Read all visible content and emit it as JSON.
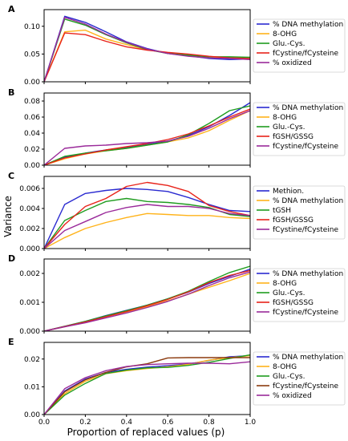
{
  "figure": {
    "ylabel": "Variance",
    "xlabel": "Proportion of replaced values (p)"
  },
  "colors": {
    "blue": "#2a2ad0",
    "orange": "#ffb31a",
    "green": "#1f9c1f",
    "red": "#e8231a",
    "purple": "#9a2a9a",
    "brown": "#8b3a0e"
  },
  "chart_data": [
    {
      "type": "line",
      "panel": "A",
      "xlim": [
        0,
        1
      ],
      "ylim": [
        0,
        0.13
      ],
      "xticks": [
        "0.0",
        "0.2",
        "0.4",
        "0.6",
        "0.8",
        "1.0"
      ],
      "yticks": [
        {
          "v": 0,
          "label": "0.00"
        },
        {
          "v": 0.05,
          "label": "0.05"
        },
        {
          "v": 0.1,
          "label": "0.10"
        }
      ],
      "x": [
        0,
        0.1,
        0.2,
        0.3,
        0.4,
        0.5,
        0.6,
        0.7,
        0.8,
        0.9,
        1.0
      ],
      "series": [
        {
          "name": "% DNA methylation",
          "color": "#2a2ad0",
          "values": [
            0,
            0.118,
            0.107,
            0.09,
            0.072,
            0.06,
            0.051,
            0.047,
            0.042,
            0.04,
            0.041
          ]
        },
        {
          "name": "8-OHG",
          "color": "#ffb31a",
          "values": [
            0,
            0.09,
            0.093,
            0.077,
            0.067,
            0.058,
            0.052,
            0.048,
            0.045,
            0.043,
            0.044
          ]
        },
        {
          "name": "Glu.-Cys.",
          "color": "#1f9c1f",
          "values": [
            0,
            0.113,
            0.102,
            0.085,
            0.07,
            0.058,
            0.051,
            0.048,
            0.045,
            0.045,
            0.044
          ]
        },
        {
          "name": "fCystine/fCysteine",
          "color": "#e8231a",
          "values": [
            0,
            0.088,
            0.085,
            0.073,
            0.063,
            0.057,
            0.053,
            0.05,
            0.046,
            0.043,
            0.042
          ]
        },
        {
          "name": "% oxidized",
          "color": "#9a2a9a",
          "values": [
            0,
            0.116,
            0.104,
            0.086,
            0.071,
            0.059,
            0.051,
            0.046,
            0.043,
            0.042,
            0.04
          ]
        }
      ]
    },
    {
      "type": "line",
      "panel": "B",
      "xlim": [
        0,
        1
      ],
      "ylim": [
        0,
        0.09
      ],
      "xticks": [
        "0.0",
        "0.2",
        "0.4",
        "0.6",
        "0.8",
        "1.0"
      ],
      "yticks": [
        {
          "v": 0,
          "label": "0.00"
        },
        {
          "v": 0.02,
          "label": "0.02"
        },
        {
          "v": 0.04,
          "label": "0.04"
        },
        {
          "v": 0.06,
          "label": "0.06"
        },
        {
          "v": 0.08,
          "label": "0.08"
        }
      ],
      "x": [
        0,
        0.1,
        0.2,
        0.3,
        0.4,
        0.5,
        0.6,
        0.7,
        0.8,
        0.9,
        1.0
      ],
      "series": [
        {
          "name": "% DNA methylation",
          "color": "#2a2ad0",
          "values": [
            0,
            0.01,
            0.015,
            0.019,
            0.022,
            0.026,
            0.03,
            0.037,
            0.048,
            0.062,
            0.078
          ]
        },
        {
          "name": "8-OHG",
          "color": "#ffb31a",
          "values": [
            0,
            0.008,
            0.014,
            0.018,
            0.021,
            0.025,
            0.029,
            0.034,
            0.043,
            0.056,
            0.068
          ]
        },
        {
          "name": "Glu.-Cys.",
          "color": "#1f9c1f",
          "values": [
            0,
            0.011,
            0.015,
            0.018,
            0.021,
            0.025,
            0.029,
            0.038,
            0.052,
            0.068,
            0.074
          ]
        },
        {
          "name": "fGSH/GSSG",
          "color": "#e8231a",
          "values": [
            0,
            0.009,
            0.014,
            0.019,
            0.023,
            0.027,
            0.032,
            0.039,
            0.049,
            0.06,
            0.07
          ]
        },
        {
          "name": "fCystine/fCysteine",
          "color": "#9a2a9a",
          "values": [
            0,
            0.021,
            0.024,
            0.025,
            0.027,
            0.028,
            0.03,
            0.036,
            0.046,
            0.058,
            0.068
          ]
        }
      ]
    },
    {
      "type": "line",
      "panel": "C",
      "xlim": [
        0,
        1
      ],
      "ylim": [
        0,
        0.0072
      ],
      "xticks": [
        "0.0",
        "0.2",
        "0.4",
        "0.6",
        "0.8",
        "1.0"
      ],
      "yticks": [
        {
          "v": 0,
          "label": "0.000"
        },
        {
          "v": 0.002,
          "label": "0.002"
        },
        {
          "v": 0.004,
          "label": "0.004"
        },
        {
          "v": 0.006,
          "label": "0.006"
        }
      ],
      "x": [
        0,
        0.1,
        0.2,
        0.3,
        0.4,
        0.5,
        0.6,
        0.7,
        0.8,
        0.9,
        1.0
      ],
      "series": [
        {
          "name": "Methion.",
          "color": "#2a2ad0",
          "values": [
            0,
            0.0044,
            0.0055,
            0.0058,
            0.006,
            0.0059,
            0.0057,
            0.0051,
            0.0044,
            0.0038,
            0.0037
          ]
        },
        {
          "name": "% DNA methylation",
          "color": "#ffb31a",
          "values": [
            0,
            0.0011,
            0.002,
            0.0026,
            0.0031,
            0.0035,
            0.0034,
            0.0033,
            0.0033,
            0.0031,
            0.003
          ]
        },
        {
          "name": "tGSH",
          "color": "#1f9c1f",
          "values": [
            0,
            0.0028,
            0.0038,
            0.0047,
            0.005,
            0.0047,
            0.0046,
            0.0044,
            0.0041,
            0.0034,
            0.0032
          ]
        },
        {
          "name": "fGSH/GSSG",
          "color": "#e8231a",
          "values": [
            0,
            0.0024,
            0.0042,
            0.005,
            0.0062,
            0.0066,
            0.0063,
            0.0057,
            0.0043,
            0.0037,
            0.0033
          ]
        },
        {
          "name": "fCystine/fCysteine",
          "color": "#9a2a9a",
          "values": [
            0,
            0.0018,
            0.0027,
            0.0036,
            0.0041,
            0.0044,
            0.0042,
            0.0042,
            0.004,
            0.0035,
            0.0033
          ]
        }
      ]
    },
    {
      "type": "line",
      "panel": "D",
      "xlim": [
        0,
        1
      ],
      "ylim": [
        0,
        0.0025
      ],
      "xticks": [
        "0.0",
        "0.2",
        "0.4",
        "0.6",
        "0.8",
        "1.0"
      ],
      "yticks": [
        {
          "v": 0,
          "label": "0.000"
        },
        {
          "v": 0.001,
          "label": "0.001"
        },
        {
          "v": 0.002,
          "label": "0.002"
        }
      ],
      "x": [
        0,
        0.1,
        0.2,
        0.3,
        0.4,
        0.5,
        0.6,
        0.7,
        0.8,
        0.9,
        1.0
      ],
      "series": [
        {
          "name": "% DNA methylation",
          "color": "#2a2ad0",
          "values": [
            0,
            0.00017,
            0.00034,
            0.00054,
            0.00072,
            0.0009,
            0.00112,
            0.00135,
            0.00165,
            0.0019,
            0.00215
          ]
        },
        {
          "name": "8-OHG",
          "color": "#ffb31a",
          "values": [
            0,
            0.00015,
            0.00031,
            0.0005,
            0.00067,
            0.00085,
            0.00105,
            0.00128,
            0.00152,
            0.00175,
            0.002
          ]
        },
        {
          "name": "Glu.-Cys.",
          "color": "#1f9c1f",
          "values": [
            0,
            0.00017,
            0.00034,
            0.00053,
            0.00071,
            0.0009,
            0.00112,
            0.00138,
            0.00172,
            0.00203,
            0.00225
          ]
        },
        {
          "name": "fGSH/GSSG",
          "color": "#e8231a",
          "values": [
            0,
            0.00016,
            0.00032,
            0.0005,
            0.00068,
            0.00088,
            0.0011,
            0.00136,
            0.00168,
            0.00193,
            0.0021
          ]
        },
        {
          "name": "fCystine/fCysteine",
          "color": "#9a2a9a",
          "values": [
            0,
            0.00015,
            0.00029,
            0.00046,
            0.00063,
            0.00082,
            0.00103,
            0.00128,
            0.00158,
            0.00185,
            0.00205
          ]
        }
      ]
    },
    {
      "type": "line",
      "panel": "E",
      "xlim": [
        0,
        1
      ],
      "ylim": [
        0,
        0.026
      ],
      "xticks": [
        "0.0",
        "0.2",
        "0.4",
        "0.6",
        "0.8",
        "1.0"
      ],
      "yticks": [
        {
          "v": 0,
          "label": "0.00"
        },
        {
          "v": 0.01,
          "label": "0.01"
        },
        {
          "v": 0.02,
          "label": "0.02"
        }
      ],
      "x": [
        0,
        0.1,
        0.2,
        0.3,
        0.4,
        0.5,
        0.6,
        0.7,
        0.8,
        0.9,
        1.0
      ],
      "series": [
        {
          "name": "% DNA methylation",
          "color": "#2a2ad0",
          "values": [
            0,
            0.0085,
            0.0128,
            0.0152,
            0.0163,
            0.0171,
            0.0176,
            0.0182,
            0.0195,
            0.0208,
            0.0212
          ]
        },
        {
          "name": "8-OHG",
          "color": "#ffb31a",
          "values": [
            0,
            0.0075,
            0.012,
            0.0147,
            0.0158,
            0.0166,
            0.0172,
            0.0181,
            0.0196,
            0.0205,
            0.0212
          ]
        },
        {
          "name": "Glu.-Cys.",
          "color": "#1f9c1f",
          "values": [
            0,
            0.007,
            0.0112,
            0.0148,
            0.016,
            0.0168,
            0.017,
            0.0177,
            0.0188,
            0.0202,
            0.0215
          ]
        },
        {
          "name": "fCystine/fCysteine",
          "color": "#8b3a0e",
          "values": [
            0,
            0.0082,
            0.0125,
            0.0152,
            0.0172,
            0.0183,
            0.0204,
            0.0205,
            0.0205,
            0.0205,
            0.0205
          ]
        },
        {
          "name": "% oxidized",
          "color": "#9a2a9a",
          "values": [
            0,
            0.0093,
            0.0133,
            0.0158,
            0.0173,
            0.018,
            0.0183,
            0.0185,
            0.0185,
            0.0183,
            0.019
          ]
        }
      ]
    }
  ]
}
